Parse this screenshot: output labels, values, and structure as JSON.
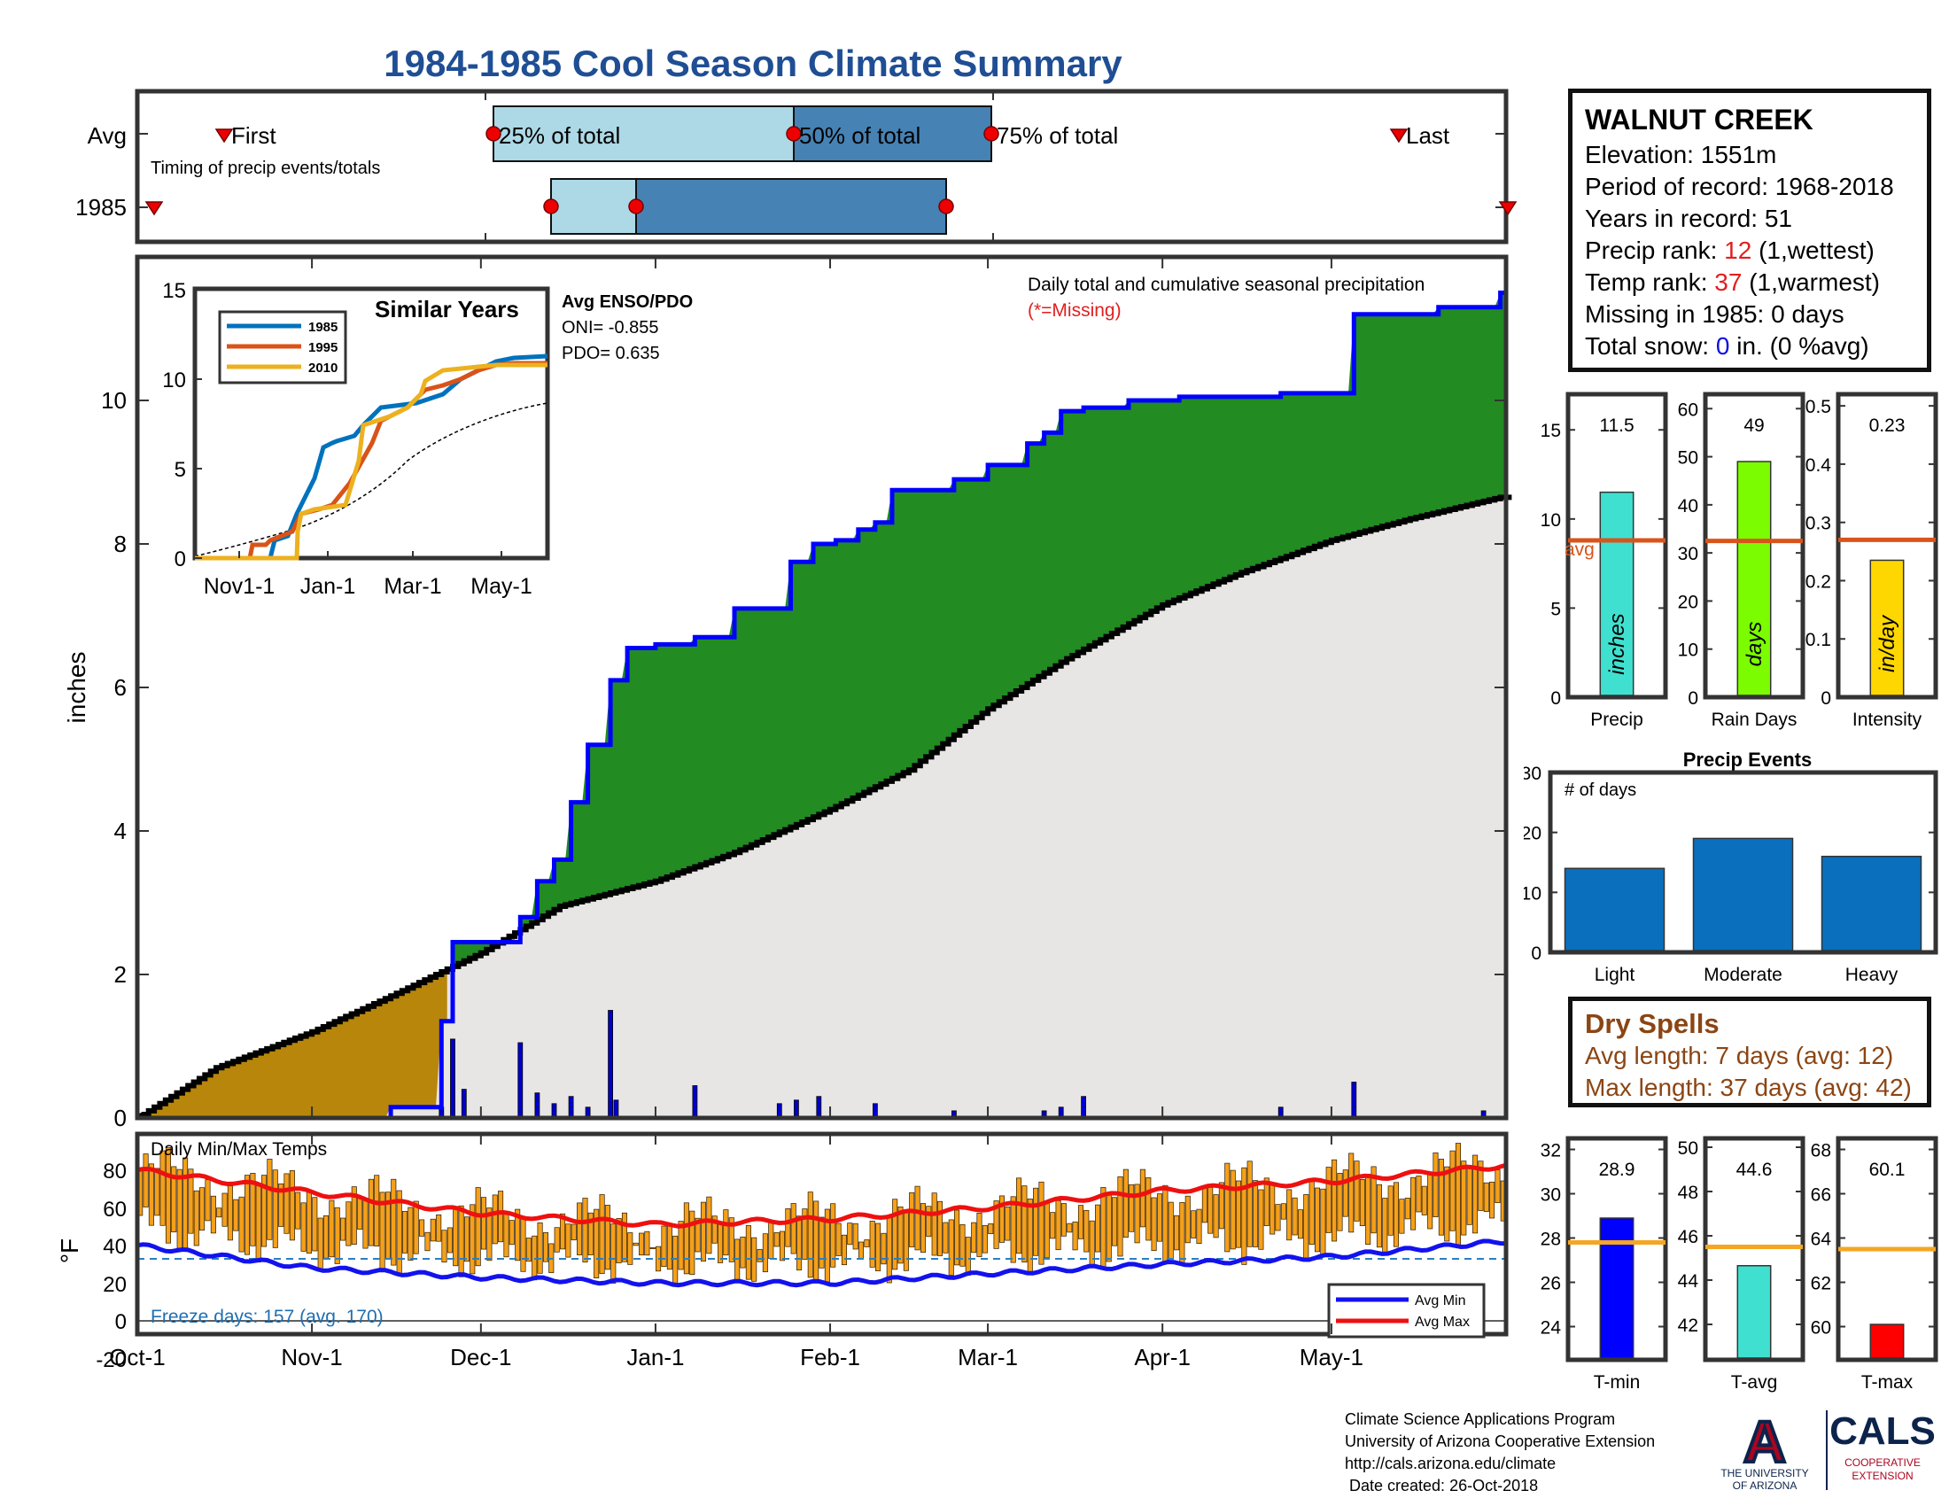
{
  "title": "1984-1985 Cool Season Climate Summary",
  "station": {
    "name": "WALNUT CREEK",
    "elevation_label": "Elevation: 1551m",
    "period_label": "Period of record: 1968-2018",
    "years_label": "Years in record: 51",
    "precip_rank_prefix": "Precip rank: ",
    "precip_rank_value": "12",
    "precip_rank_suffix": " (1,wettest)",
    "temp_rank_prefix": "Temp rank: ",
    "temp_rank_value": "37",
    "temp_rank_suffix": " (1,warmest)",
    "missing_label": "Missing in 1985: 0 days",
    "snow_prefix": "Total snow: ",
    "snow_value": "0",
    "snow_suffix": " in. (0 %avg)"
  },
  "timing": {
    "row_labels": [
      "Avg",
      "1985"
    ],
    "caption": "Timing of precip events/totals",
    "labels": {
      "first": "First",
      "p25": "25% of total",
      "p50": "50% of total",
      "p75": "75% of total",
      "last": "Last"
    },
    "avg": {
      "first": "Oct 24",
      "p25": "Dec 2",
      "p50": "Jan 24",
      "p75": "Feb 28",
      "last": "May 19"
    },
    "y1985": {
      "first": "Oct 4",
      "p25": "Dec 12",
      "p50": "Dec 27",
      "p75": "Feb 20",
      "last": "May 31"
    }
  },
  "main_note": "Daily total and cumulative seasonal precipitation",
  "missing_note": "(*=Missing)",
  "enso": {
    "heading": "Avg ENSO/PDO",
    "oni": "ONI= -0.855",
    "pdo": "PDO= 0.635"
  },
  "inset": {
    "title": "Similar Years",
    "legend": [
      "1985",
      "1995",
      "2010"
    ],
    "xticks": [
      "Nov1-1",
      "Jan-1",
      "Mar-1",
      "May-1"
    ],
    "yticks": [
      "0",
      "5",
      "10",
      "15"
    ]
  },
  "temp_panel": {
    "title": "Daily Min/Max Temps",
    "ylabel": "°F",
    "freeze_label": "Freeze days: 157 (avg. 170)",
    "legend": [
      "Avg Min",
      "Avg Max"
    ],
    "yticks": [
      "80",
      "60",
      "40",
      "20",
      "0",
      "-20"
    ]
  },
  "bars_top": [
    {
      "label": "Precip",
      "value_label": "11.5",
      "unit": "inches",
      "value": 11.5,
      "avg": 8.8,
      "avg_label": "avg",
      "ymax": 17,
      "ticks": [
        "0",
        "5",
        "10",
        "15"
      ],
      "color": "#40e0d0"
    },
    {
      "label": "Rain Days",
      "value_label": "49",
      "unit": "days",
      "value": 49,
      "avg": 32.5,
      "ymax": 63,
      "ticks": [
        "0",
        "10",
        "20",
        "30",
        "40",
        "50",
        "60"
      ],
      "color": "#7cfc00"
    },
    {
      "label": "Intensity",
      "value_label": "0.23",
      "unit": "in/day",
      "value": 0.235,
      "avg": 0.27,
      "ymax": 0.52,
      "ticks": [
        "0",
        "0.1",
        "0.2",
        "0.3",
        "0.4",
        "0.5"
      ],
      "color": "#ffd700"
    }
  ],
  "events": {
    "title": "Precip Events",
    "ylabel": "# of days",
    "categories": [
      "Light",
      "Moderate",
      "Heavy"
    ],
    "values": [
      14,
      19,
      16
    ],
    "yticks": [
      "0",
      "10",
      "20",
      "30"
    ]
  },
  "dry_spells": {
    "heading": "Dry Spells",
    "avg_length": "Avg length: 7 days (avg: 12)",
    "max_length": "Max length: 37 days (avg: 42)"
  },
  "bars_temp": [
    {
      "label": "T-min",
      "value_label": "28.9",
      "value": 28.9,
      "avg": 27.8,
      "ymin": 22.5,
      "ymax": 32.5,
      "ticks": [
        "24",
        "26",
        "28",
        "30",
        "32"
      ],
      "color": "#0000ff"
    },
    {
      "label": "T-avg",
      "value_label": "44.6",
      "value": 44.65,
      "avg": 45.5,
      "ymin": 40.4,
      "ymax": 50.4,
      "ticks": [
        "42",
        "44",
        "46",
        "48",
        "50"
      ],
      "color": "#40e0d0"
    },
    {
      "label": "T-max",
      "value_label": "60.1",
      "value": 60.1,
      "avg": 63.5,
      "ymin": 58.5,
      "ymax": 68.5,
      "ticks": [
        "60",
        "62",
        "64",
        "66",
        "68"
      ],
      "color": "#ff0000"
    }
  ],
  "credits": [
    "Climate Science Applications Program",
    "University of Arizona Cooperative Extension",
    "http://cals.arizona.edu/climate",
    " Date created: 26-Oct-2018"
  ],
  "logos": {
    "ua_letter": "A",
    "ua_line1": "THE UNIVERSITY",
    "ua_line2": "OF ARIZONA",
    "cals": "CALS",
    "cals_line1": "COOPERATIVE",
    "cals_line2": "EXTENSION"
  },
  "chart_data": {
    "type": "area",
    "ylabel": "inches",
    "ylim": [
      0,
      10.5
    ],
    "xticks": [
      "Oct-1",
      "Nov-1",
      "Dec-1",
      "Jan-1",
      "Feb-1",
      "Mar-1",
      "Apr-1",
      "May-1"
    ],
    "yticks": [
      "0",
      "2",
      "4",
      "6",
      "8",
      "10"
    ],
    "series": [
      {
        "name": "1985",
        "color": "#0000ff",
        "x": [
          "Oct-1",
          "Nov-15",
          "Nov-24",
          "Nov-26",
          "Dec-8",
          "Dec-11",
          "Dec-14",
          "Dec-17",
          "Dec-20",
          "Dec-24",
          "Dec-27",
          "Jan-1",
          "Jan-8",
          "Jan-15",
          "Jan-25",
          "Jan-29",
          "Feb-2",
          "Feb-6",
          "Feb-9",
          "Feb-12",
          "Feb-23",
          "Mar-1",
          "Mar-8",
          "Mar-11",
          "Mar-14",
          "Mar-18",
          "Mar-26",
          "Apr-4",
          "Apr-22",
          "May-5",
          "May-20",
          "May-31"
        ],
        "values": [
          0,
          0.15,
          1.35,
          2.45,
          2.8,
          3.3,
          3.6,
          4.4,
          5.2,
          6.1,
          6.55,
          6.6,
          6.7,
          7.1,
          7.75,
          8.0,
          8.05,
          8.2,
          8.3,
          8.75,
          8.9,
          9.1,
          9.4,
          9.55,
          9.85,
          9.9,
          10.0,
          10.05,
          10.1,
          11.2,
          11.3,
          11.5
        ]
      },
      {
        "name": "Average",
        "color": "#000000",
        "x": [
          "Oct-1",
          "Oct-15",
          "Nov-1",
          "Nov-15",
          "Dec-1",
          "Dec-15",
          "Jan-1",
          "Jan-15",
          "Feb-1",
          "Feb-15",
          "Mar-1",
          "Mar-15",
          "Apr-1",
          "Apr-15",
          "May-1",
          "May-15",
          "May-31"
        ],
        "values": [
          0,
          0.7,
          1.2,
          1.7,
          2.3,
          2.95,
          3.3,
          3.7,
          4.3,
          4.85,
          5.7,
          6.4,
          7.15,
          7.6,
          8.05,
          8.35,
          8.65
        ]
      }
    ],
    "daily_precip": [
      {
        "x": "Nov-24",
        "value": 0.15
      },
      {
        "x": "Nov-26",
        "value": 1.1
      },
      {
        "x": "Nov-28",
        "value": 0.4
      },
      {
        "x": "Dec-8",
        "value": 1.05
      },
      {
        "x": "Dec-11",
        "value": 0.35
      },
      {
        "x": "Dec-14",
        "value": 0.2
      },
      {
        "x": "Dec-17",
        "value": 0.3
      },
      {
        "x": "Dec-20",
        "value": 0.15
      },
      {
        "x": "Dec-24",
        "value": 1.5
      },
      {
        "x": "Dec-25",
        "value": 0.25
      },
      {
        "x": "Jan-8",
        "value": 0.45
      },
      {
        "x": "Jan-23",
        "value": 0.2
      },
      {
        "x": "Jan-26",
        "value": 0.25
      },
      {
        "x": "Jan-30",
        "value": 0.3
      },
      {
        "x": "Feb-9",
        "value": 0.2
      },
      {
        "x": "Feb-23",
        "value": 0.1
      },
      {
        "x": "Mar-11",
        "value": 0.1
      },
      {
        "x": "Mar-14",
        "value": 0.15
      },
      {
        "x": "Mar-18",
        "value": 0.3
      },
      {
        "x": "Apr-22",
        "value": 0.15
      },
      {
        "x": "May-5",
        "value": 0.5
      },
      {
        "x": "May-28",
        "value": 0.1
      }
    ],
    "temps": {
      "type": "bar",
      "ylim": [
        -20,
        85
      ],
      "avg_min": {
        "x": [
          "Oct-1",
          "Nov-1",
          "Dec-1",
          "Jan-1",
          "Feb-1",
          "Mar-1",
          "Apr-1",
          "May-1",
          "May-31"
        ],
        "values": [
          40,
          28,
          23,
          20,
          20,
          25,
          30,
          34,
          42
        ]
      },
      "avg_max": {
        "x": [
          "Oct-1",
          "Nov-1",
          "Dec-1",
          "Jan-1",
          "Feb-1",
          "Mar-1",
          "Apr-1",
          "May-1",
          "May-31"
        ],
        "values": [
          80,
          68,
          57,
          51,
          54,
          60,
          69,
          74,
          82
        ]
      },
      "freeze_line": 32
    }
  }
}
